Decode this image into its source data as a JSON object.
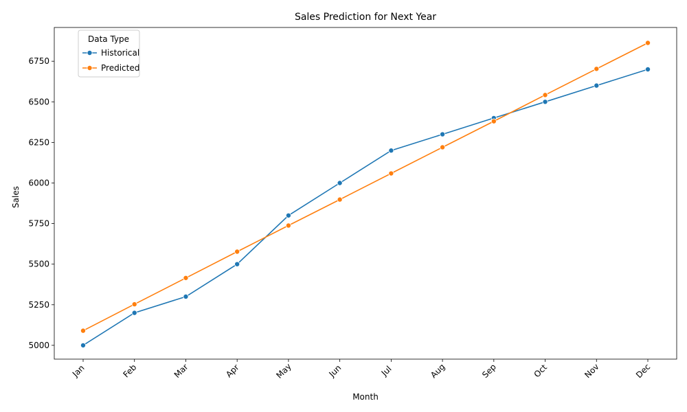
{
  "chart_data": {
    "type": "line",
    "title": "Sales Prediction for Next Year",
    "xlabel": "Month",
    "ylabel": "Sales",
    "categories": [
      "Jan",
      "Feb",
      "Mar",
      "Apr",
      "May",
      "Jun",
      "Jul",
      "Aug",
      "Sep",
      "Oct",
      "Nov",
      "Dec"
    ],
    "yticks": [
      5000,
      5250,
      5500,
      5750,
      6000,
      6250,
      6500,
      6750
    ],
    "ylim": [
      4915,
      6958
    ],
    "grid": false,
    "legend": {
      "title": "Data Type",
      "placement": "top-left"
    },
    "series": [
      {
        "name": "Historical",
        "color": "#1f77b4",
        "values": [
          5000,
          5200,
          5300,
          5500,
          5800,
          6000,
          6200,
          6300,
          6400,
          6500,
          6600,
          6700
        ]
      },
      {
        "name": "Predicted",
        "color": "#ff7f0e",
        "values": [
          5090,
          5253,
          5415,
          5577,
          5738,
          5898,
          6059,
          6220,
          6380,
          6542,
          6703,
          6863
        ]
      }
    ]
  }
}
